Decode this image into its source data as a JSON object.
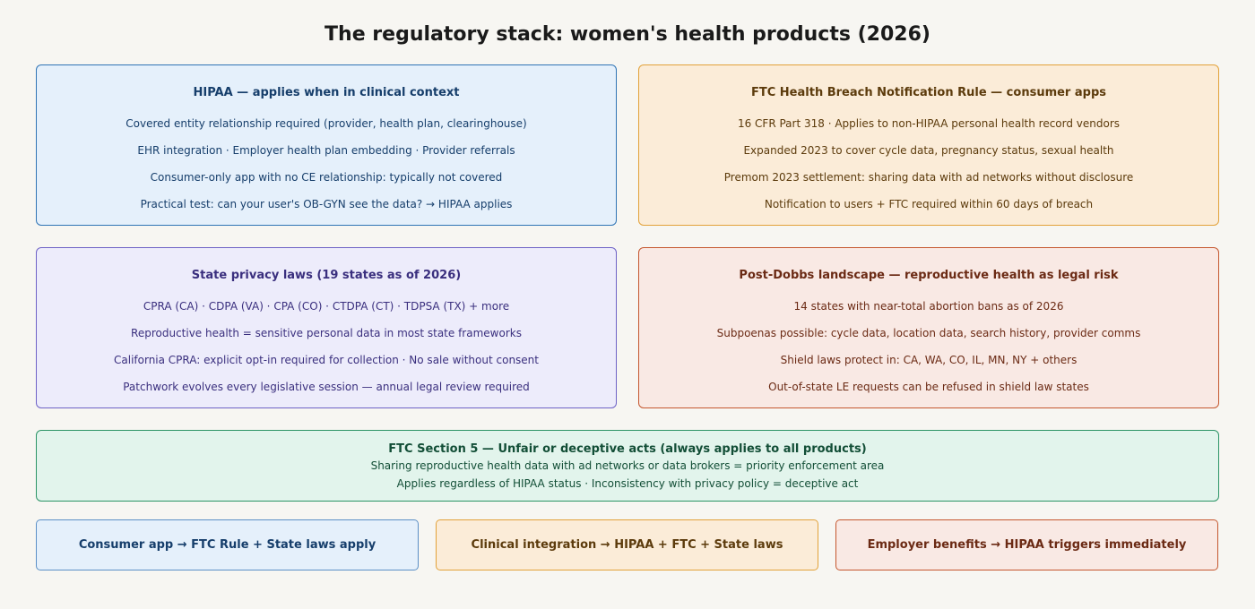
{
  "title": "The regulatory stack: women's health products (2026)",
  "hipaa": {
    "heading": "HIPAA — applies when in clinical context",
    "lines": [
      "Covered entity relationship required (provider, health plan, clearinghouse)",
      "EHR integration · Employer health plan embedding · Provider referrals",
      "Consumer-only app with no CE relationship: typically not covered",
      "Practical test: can your user's OB-GYN see the data? → HIPAA applies"
    ]
  },
  "ftc_hbnr": {
    "heading": "FTC Health Breach Notification Rule — consumer apps",
    "lines": [
      "16 CFR Part 318 · Applies to non-HIPAA personal health record vendors",
      "Expanded 2023 to cover cycle data, pregnancy status, sexual health",
      "Premom 2023 settlement: sharing data with ad networks without disclosure",
      "Notification to users + FTC required within 60 days of breach"
    ]
  },
  "state_privacy": {
    "heading": "State privacy laws (19 states as of 2026)",
    "lines": [
      "CPRA (CA) · CDPA (VA) · CPA (CO) · CTDPA (CT) · TDPSA (TX) + more",
      "Reproductive health = sensitive personal data in most state frameworks",
      "California CPRA: explicit opt-in required for collection · No sale without consent",
      "Patchwork evolves every legislative session — annual legal review required"
    ]
  },
  "post_dobbs": {
    "heading": "Post-Dobbs landscape — reproductive health as legal risk",
    "lines": [
      "14 states with near-total abortion bans as of 2026",
      "Subpoenas possible: cycle data, location data, search history, provider comms",
      "Shield laws protect in: CA, WA, CO, IL, MN, NY + others",
      "Out-of-state LE requests can be refused in shield law states"
    ]
  },
  "ftc_section5": {
    "heading": "FTC Section 5 — Unfair or deceptive acts (always applies to all products)",
    "lines": [
      "Sharing reproductive health data with ad networks or data brokers = priority enforcement area",
      "Applies regardless of HIPAA status · Inconsistency with privacy policy = deceptive act"
    ]
  },
  "summary": {
    "consumer": "Consumer app  →  FTC Rule + State laws apply",
    "clinical": "Clinical integration  →  HIPAA + FTC + State laws",
    "employer": "Employer benefits  →  HIPAA triggers immediately"
  },
  "colors": {
    "hipaa": "#2f74b5",
    "ftc_hbnr": "#e2a23a",
    "state_privacy": "#6e62c6",
    "post_dobbs": "#c5572f",
    "ftc_section5": "#2b9466"
  }
}
